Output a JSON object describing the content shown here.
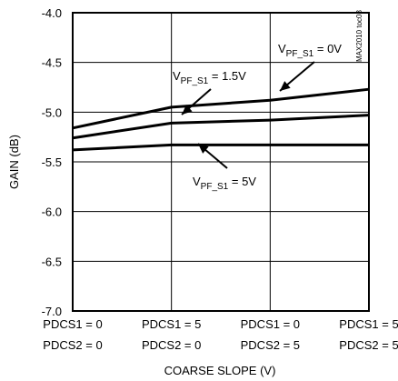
{
  "chart_data": {
    "type": "line",
    "title": "",
    "ylabel": "GAIN (dB)",
    "xlabel": "COARSE SLOPE (V)",
    "watermark": "MAX2010 toc08",
    "ylim": [
      -7.0,
      -4.0
    ],
    "yticks": [
      "-4.0",
      "-4.5",
      "-5.0",
      "-5.5",
      "-6.0",
      "-6.5",
      "-7.0"
    ],
    "categories": [
      {
        "line1": "PDCS1 = 0",
        "line2": "PDCS2 = 0"
      },
      {
        "line1": "PDCS1 = 5",
        "line2": "PDCS2 = 0"
      },
      {
        "line1": "PDCS1 = 0",
        "line2": "PDCS2 = 5"
      },
      {
        "line1": "PDCS1 = 5",
        "line2": "PDCS2 = 5"
      }
    ],
    "x": [
      0,
      1,
      2,
      3
    ],
    "series": [
      {
        "name": "V_PF_S1 = 0V",
        "values": [
          -5.16,
          -4.95,
          -4.88,
          -4.77
        ]
      },
      {
        "name": "V_PF_S1 = 1.5V",
        "values": [
          -5.26,
          -5.11,
          -5.08,
          -5.03
        ]
      },
      {
        "name": "V_PF_S1 = 5V",
        "values": [
          -5.38,
          -5.33,
          -5.33,
          -5.33
        ]
      }
    ],
    "annotations": [
      {
        "main": "V",
        "sub": "PF_S1",
        "tail": " = 0V",
        "series": 0
      },
      {
        "main": "V",
        "sub": "PF_S1",
        "tail": " = 1.5V",
        "series": 1
      },
      {
        "main": "V",
        "sub": "PF_S1",
        "tail": " = 5V",
        "series": 2
      }
    ],
    "grid": true
  }
}
